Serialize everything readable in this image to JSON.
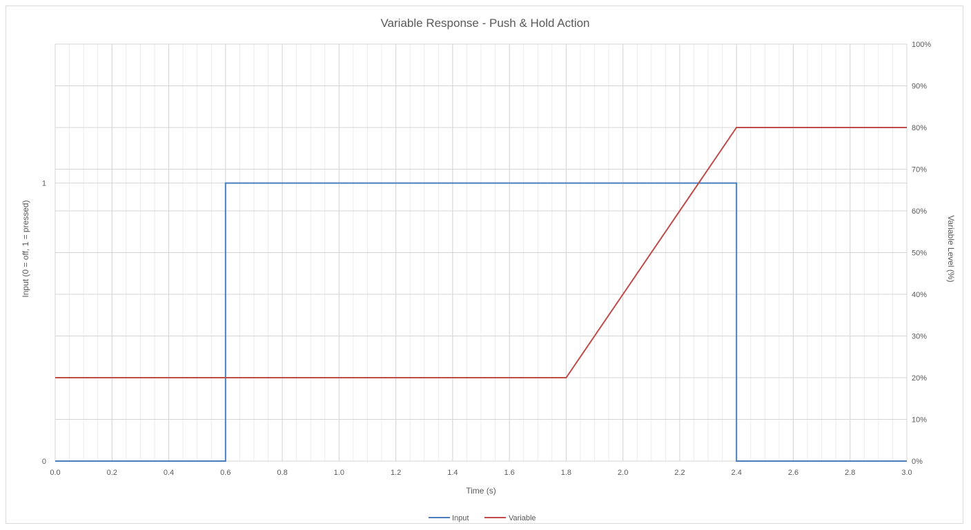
{
  "chart_data": {
    "type": "line",
    "title": "Variable Response - Push & Hold Action",
    "xlabel": "Time (s)",
    "ylabel_left": "Input (0 = off, 1 = pressed)",
    "ylabel_right": "Variable Level (%)",
    "xlim": [
      0.0,
      3.0
    ],
    "ylim_left": [
      0,
      1.5
    ],
    "ylim_right": [
      0,
      100
    ],
    "x_ticks": [
      "0.0",
      "0.2",
      "0.4",
      "0.6",
      "0.8",
      "1.0",
      "1.2",
      "1.4",
      "1.6",
      "1.8",
      "2.0",
      "2.2",
      "2.4",
      "2.6",
      "2.8",
      "3.0"
    ],
    "y_left_ticks": [
      "0",
      "1"
    ],
    "y_right_ticks": [
      "0%",
      "10%",
      "20%",
      "30%",
      "40%",
      "50%",
      "60%",
      "70%",
      "80%",
      "90%",
      "100%"
    ],
    "grid": true,
    "legend_position": "bottom",
    "series": [
      {
        "name": "Input",
        "axis": "left",
        "color": "#4a7ebb",
        "x": [
          0.0,
          0.6,
          0.6,
          2.4,
          2.4,
          3.0
        ],
        "y": [
          0,
          0,
          1,
          1,
          0,
          0
        ]
      },
      {
        "name": "Variable",
        "axis": "right",
        "color": "#be4b48",
        "x": [
          0.0,
          1.8,
          2.4,
          3.0
        ],
        "y": [
          20,
          20,
          80,
          80
        ]
      }
    ]
  }
}
